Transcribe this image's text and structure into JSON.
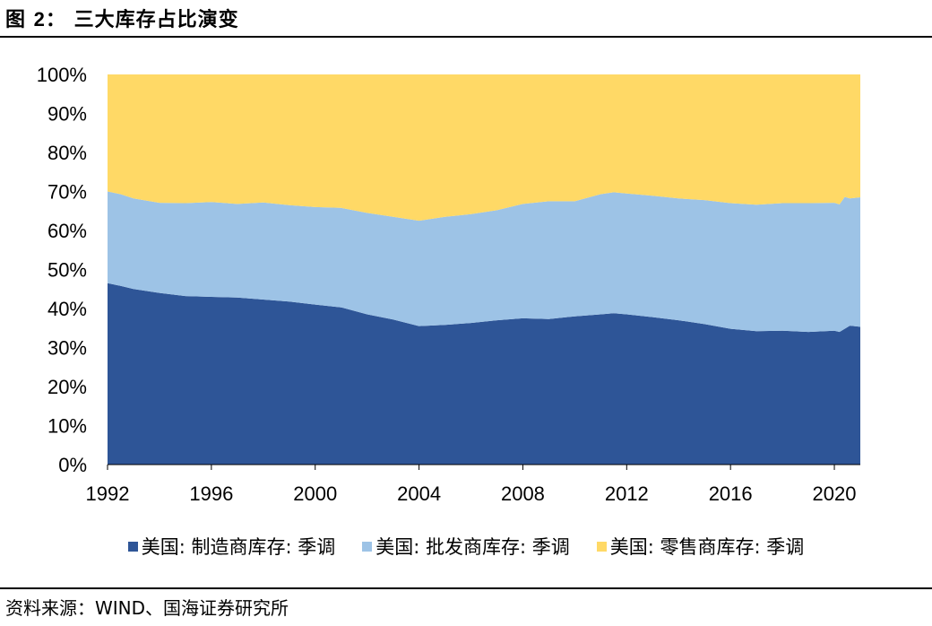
{
  "figure": {
    "label": "图 ",
    "number": "2",
    "title": "： 三大库存占比演变"
  },
  "source": "资料来源：WIND、国海证券研究所",
  "chart_data": {
    "type": "area",
    "stacked": true,
    "percent": true,
    "xlim": [
      1992,
      2021
    ],
    "ylim": [
      0,
      100
    ],
    "xticks": [
      "1992",
      "1996",
      "2000",
      "2004",
      "2008",
      "2012",
      "2016",
      "2020"
    ],
    "yticks": [
      "0%",
      "10%",
      "20%",
      "30%",
      "40%",
      "50%",
      "60%",
      "70%",
      "80%",
      "90%",
      "100%"
    ],
    "x": [
      1992,
      1992.5,
      1993,
      1994,
      1995,
      1996,
      1997,
      1998,
      1999,
      2000,
      2001,
      2002,
      2003,
      2004,
      2005,
      2006,
      2007,
      2008,
      2009,
      2010,
      2011,
      2011.5,
      2012,
      2013,
      2014,
      2015,
      2016,
      2017,
      2018,
      2019,
      2020,
      2020.2,
      2020.4,
      2020.6,
      2021
    ],
    "series": [
      {
        "name": "美国: 制造商库存: 季调",
        "color": "#2e5597",
        "values": [
          46.5,
          45.8,
          45.0,
          44.0,
          43.2,
          43.0,
          42.8,
          42.3,
          41.8,
          41.0,
          40.3,
          38.5,
          37.2,
          35.5,
          35.8,
          36.3,
          37.0,
          37.5,
          37.3,
          38.0,
          38.5,
          38.8,
          38.5,
          37.8,
          37.0,
          36.0,
          34.8,
          34.2,
          34.3,
          34.0,
          34.3,
          34.0,
          34.8,
          35.6,
          35.3
        ]
      },
      {
        "name": "美国: 批发商库存: 季调",
        "color": "#9dc3e6",
        "values": [
          23.5,
          23.5,
          23.2,
          23.1,
          23.8,
          24.3,
          24.0,
          24.9,
          24.7,
          25.0,
          25.5,
          26.0,
          26.3,
          27.0,
          27.7,
          27.9,
          28.2,
          29.3,
          30.2,
          29.5,
          30.8,
          31.0,
          31.0,
          31.1,
          31.2,
          31.8,
          32.2,
          32.4,
          32.7,
          33.0,
          32.8,
          32.7,
          33.8,
          32.6,
          33.2
        ]
      },
      {
        "name": "美国: 零售商库存: 季调",
        "color": "#ffd966",
        "values": [
          30.0,
          30.7,
          31.8,
          32.9,
          33.0,
          32.7,
          33.2,
          32.8,
          33.5,
          34.0,
          34.2,
          35.5,
          36.5,
          37.5,
          36.5,
          35.8,
          34.8,
          33.2,
          32.5,
          32.5,
          30.7,
          30.2,
          30.5,
          31.1,
          31.8,
          32.2,
          33.0,
          33.4,
          33.0,
          33.0,
          32.9,
          33.3,
          31.4,
          31.8,
          31.5
        ]
      }
    ],
    "legend_position": "bottom",
    "grid": false
  }
}
